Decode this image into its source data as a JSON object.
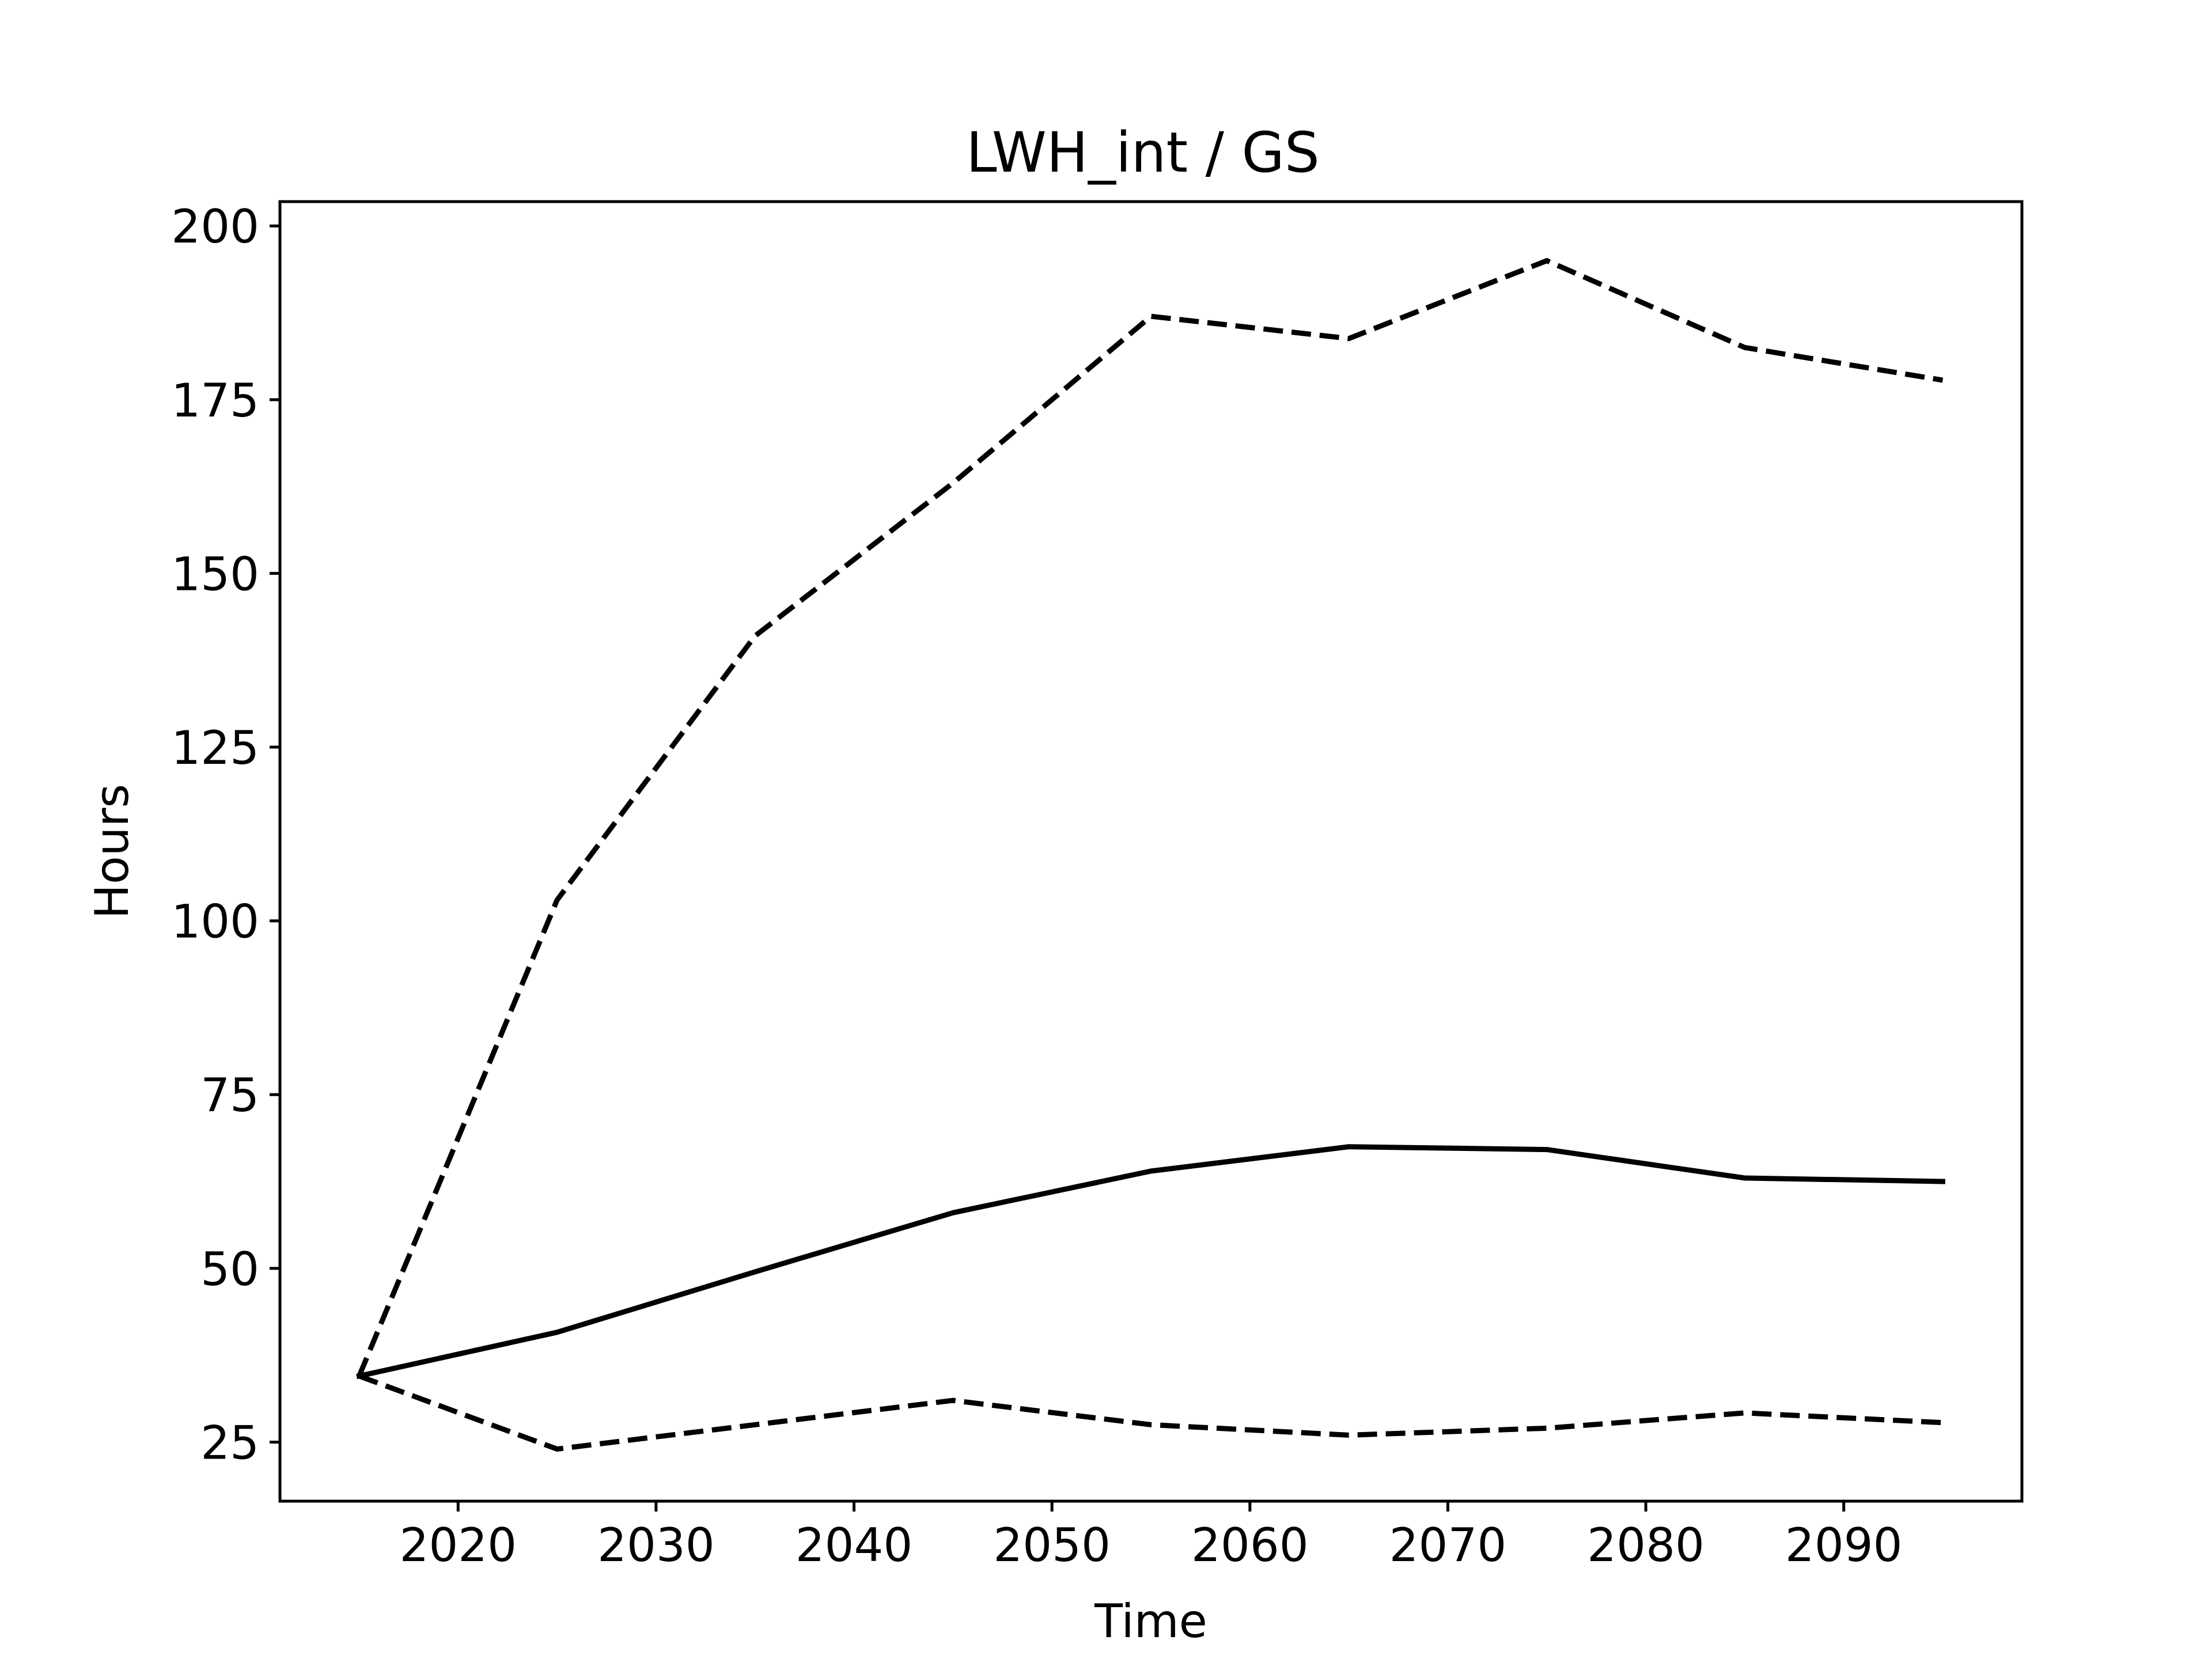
{
  "chart_data": {
    "type": "line",
    "title": "LWH_int / GS",
    "xlabel": "Time",
    "ylabel": "Hours",
    "xlim": [
      2011,
      2099
    ],
    "ylim": [
      16.5,
      203.5
    ],
    "xticks": [
      2020,
      2030,
      2040,
      2050,
      2060,
      2070,
      2080,
      2090
    ],
    "yticks": [
      25,
      50,
      75,
      100,
      125,
      150,
      175,
      200
    ],
    "grid": false,
    "legend": "none",
    "x": [
      2015,
      2025,
      2035,
      2045,
      2055,
      2065,
      2075,
      2085,
      2095
    ],
    "series": [
      {
        "style": "solid",
        "color": "#000000",
        "values": [
          34.5,
          40.8,
          49.5,
          58.0,
          64.0,
          67.5,
          67.1,
          63.0,
          62.5
        ]
      },
      {
        "style": "dashed",
        "color": "#000000",
        "values": [
          34.5,
          103.0,
          141.0,
          163.0,
          187.0,
          183.8,
          195.0,
          182.5,
          177.8
        ]
      },
      {
        "style": "dashed",
        "color": "#000000",
        "values": [
          34.5,
          24.0,
          27.5,
          31.0,
          27.5,
          26.0,
          27.0,
          29.2,
          27.8
        ]
      }
    ]
  }
}
